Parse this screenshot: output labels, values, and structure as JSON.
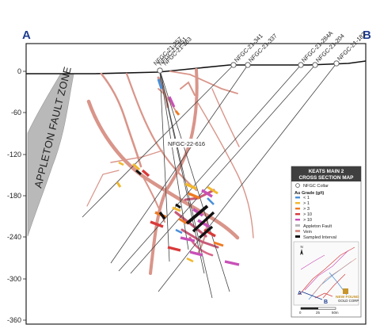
{
  "section": {
    "left_label": "A",
    "right_label": "B",
    "fault_zone_label": "APPLETON FAULT ZONE",
    "callout_hole": "NFGC-22-616"
  },
  "y_axis": {
    "ticks": [
      "0",
      "-60",
      "-120",
      "-180",
      "-240",
      "-300",
      "-360"
    ]
  },
  "drill_holes": [
    {
      "id": "NFGC-21-257"
    },
    {
      "id": "NFGC-21-251"
    },
    {
      "id": "NFGC-21-263"
    },
    {
      "id": "NFGC-21-341"
    },
    {
      "id": "NFGC-21-337"
    },
    {
      "id": "NFGC-21-284A"
    },
    {
      "id": "NFGC-21-204"
    },
    {
      "id": "NFGC-21-182"
    }
  ],
  "legend": {
    "title_line1": "KEATS MAIN 2",
    "title_line2": "CROSS SECTION MAP",
    "collar_label": "NFGC Collar",
    "grade_heading": "Au Grade (g/t)",
    "grades": [
      {
        "label": "< 1",
        "color": "#4a90d9"
      },
      {
        "label": "> 1",
        "color": "#f2b82e"
      },
      {
        "label": "> 3",
        "color": "#f07a22"
      },
      {
        "label": "> 10",
        "color": "#d93a3a"
      },
      {
        "label": "> 10",
        "color": "#c850b8"
      }
    ],
    "fault_label": "Appleton Fault",
    "vein_label": "Vein",
    "sampled_label": "Sampled Interval",
    "inset_a": "A",
    "inset_b": "B",
    "logo_line1": "NEW FOUND",
    "logo_line2": "GOLD CORP",
    "scale_ticks": [
      "0",
      "25",
      "50m"
    ],
    "north_label": "N"
  },
  "colors": {
    "axis_label": "#1f3d8f",
    "fault_zone": "#b9b9b9",
    "vein": "#d9958a",
    "drillhole": "#444444",
    "legend_header": "#3f3f3f"
  }
}
